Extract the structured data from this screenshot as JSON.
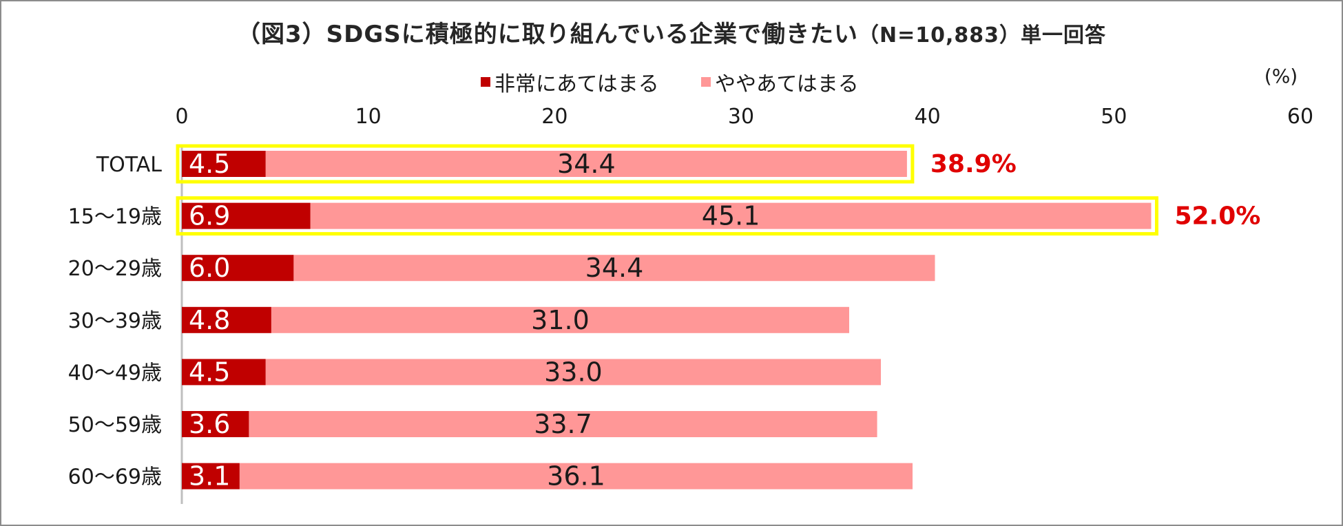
{
  "chart_data": {
    "type": "bar",
    "orientation": "horizontal",
    "stacked": true,
    "title": "（図3）SDGSに積極的に取り組んでいる企業で働きたい",
    "title_suffix": "（N=10,883）",
    "title_tail": "単一回答",
    "unit": "(%)",
    "xlim": [
      0,
      60
    ],
    "xticks": [
      0,
      10,
      20,
      30,
      40,
      50,
      60
    ],
    "legend_position": "top",
    "categories": [
      "TOTAL",
      "15～19歳",
      "20～29歳",
      "30～39歳",
      "40～49歳",
      "50～59歳",
      "60～69歳"
    ],
    "series": [
      {
        "name": "非常にあてはまる",
        "color": "#c00000",
        "values": [
          4.5,
          6.9,
          6.0,
          4.8,
          4.5,
          3.6,
          3.1
        ],
        "labels": [
          "4.5",
          "6.9",
          "6.0",
          "4.8",
          "4.5",
          "3.6",
          "3.1"
        ]
      },
      {
        "name": "ややあてはまる",
        "color": "#ff9797",
        "values": [
          34.4,
          45.1,
          34.4,
          31.0,
          33.0,
          33.7,
          36.1
        ],
        "labels": [
          "34.4",
          "45.1",
          "34.4",
          "31.0",
          "33.0",
          "33.7",
          "36.1"
        ]
      }
    ],
    "totals": [
      {
        "category": "TOTAL",
        "label": "38.9%"
      },
      {
        "category": "15～19歳",
        "label": "52.0%"
      }
    ],
    "highlight_color": "#ffff00",
    "total_label_color": "#e00000"
  }
}
